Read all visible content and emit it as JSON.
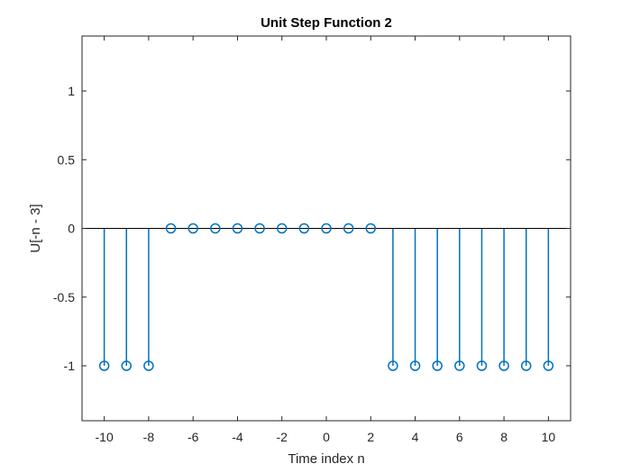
{
  "chart_data": {
    "type": "stem",
    "title": "Unit Step Function 2",
    "xlabel": "Time index n",
    "ylabel": "U[-n - 3]",
    "xlim": [
      -11,
      11
    ],
    "ylim": [
      -1.4,
      1.4
    ],
    "xticks": [
      -10,
      -8,
      -6,
      -4,
      -2,
      0,
      2,
      4,
      6,
      8,
      10
    ],
    "yticks": [
      -1,
      -0.5,
      0,
      0.5,
      1
    ],
    "grid": false,
    "color": "#0072BD",
    "x": [
      -10,
      -9,
      -8,
      -7,
      -6,
      -5,
      -4,
      -3,
      -2,
      -1,
      0,
      1,
      2,
      3,
      4,
      5,
      6,
      7,
      8,
      9,
      10
    ],
    "values": [
      -1,
      -1,
      -1,
      0,
      0,
      0,
      0,
      0,
      0,
      0,
      0,
      0,
      0,
      -1,
      -1,
      -1,
      -1,
      -1,
      -1,
      -1,
      -1
    ]
  }
}
